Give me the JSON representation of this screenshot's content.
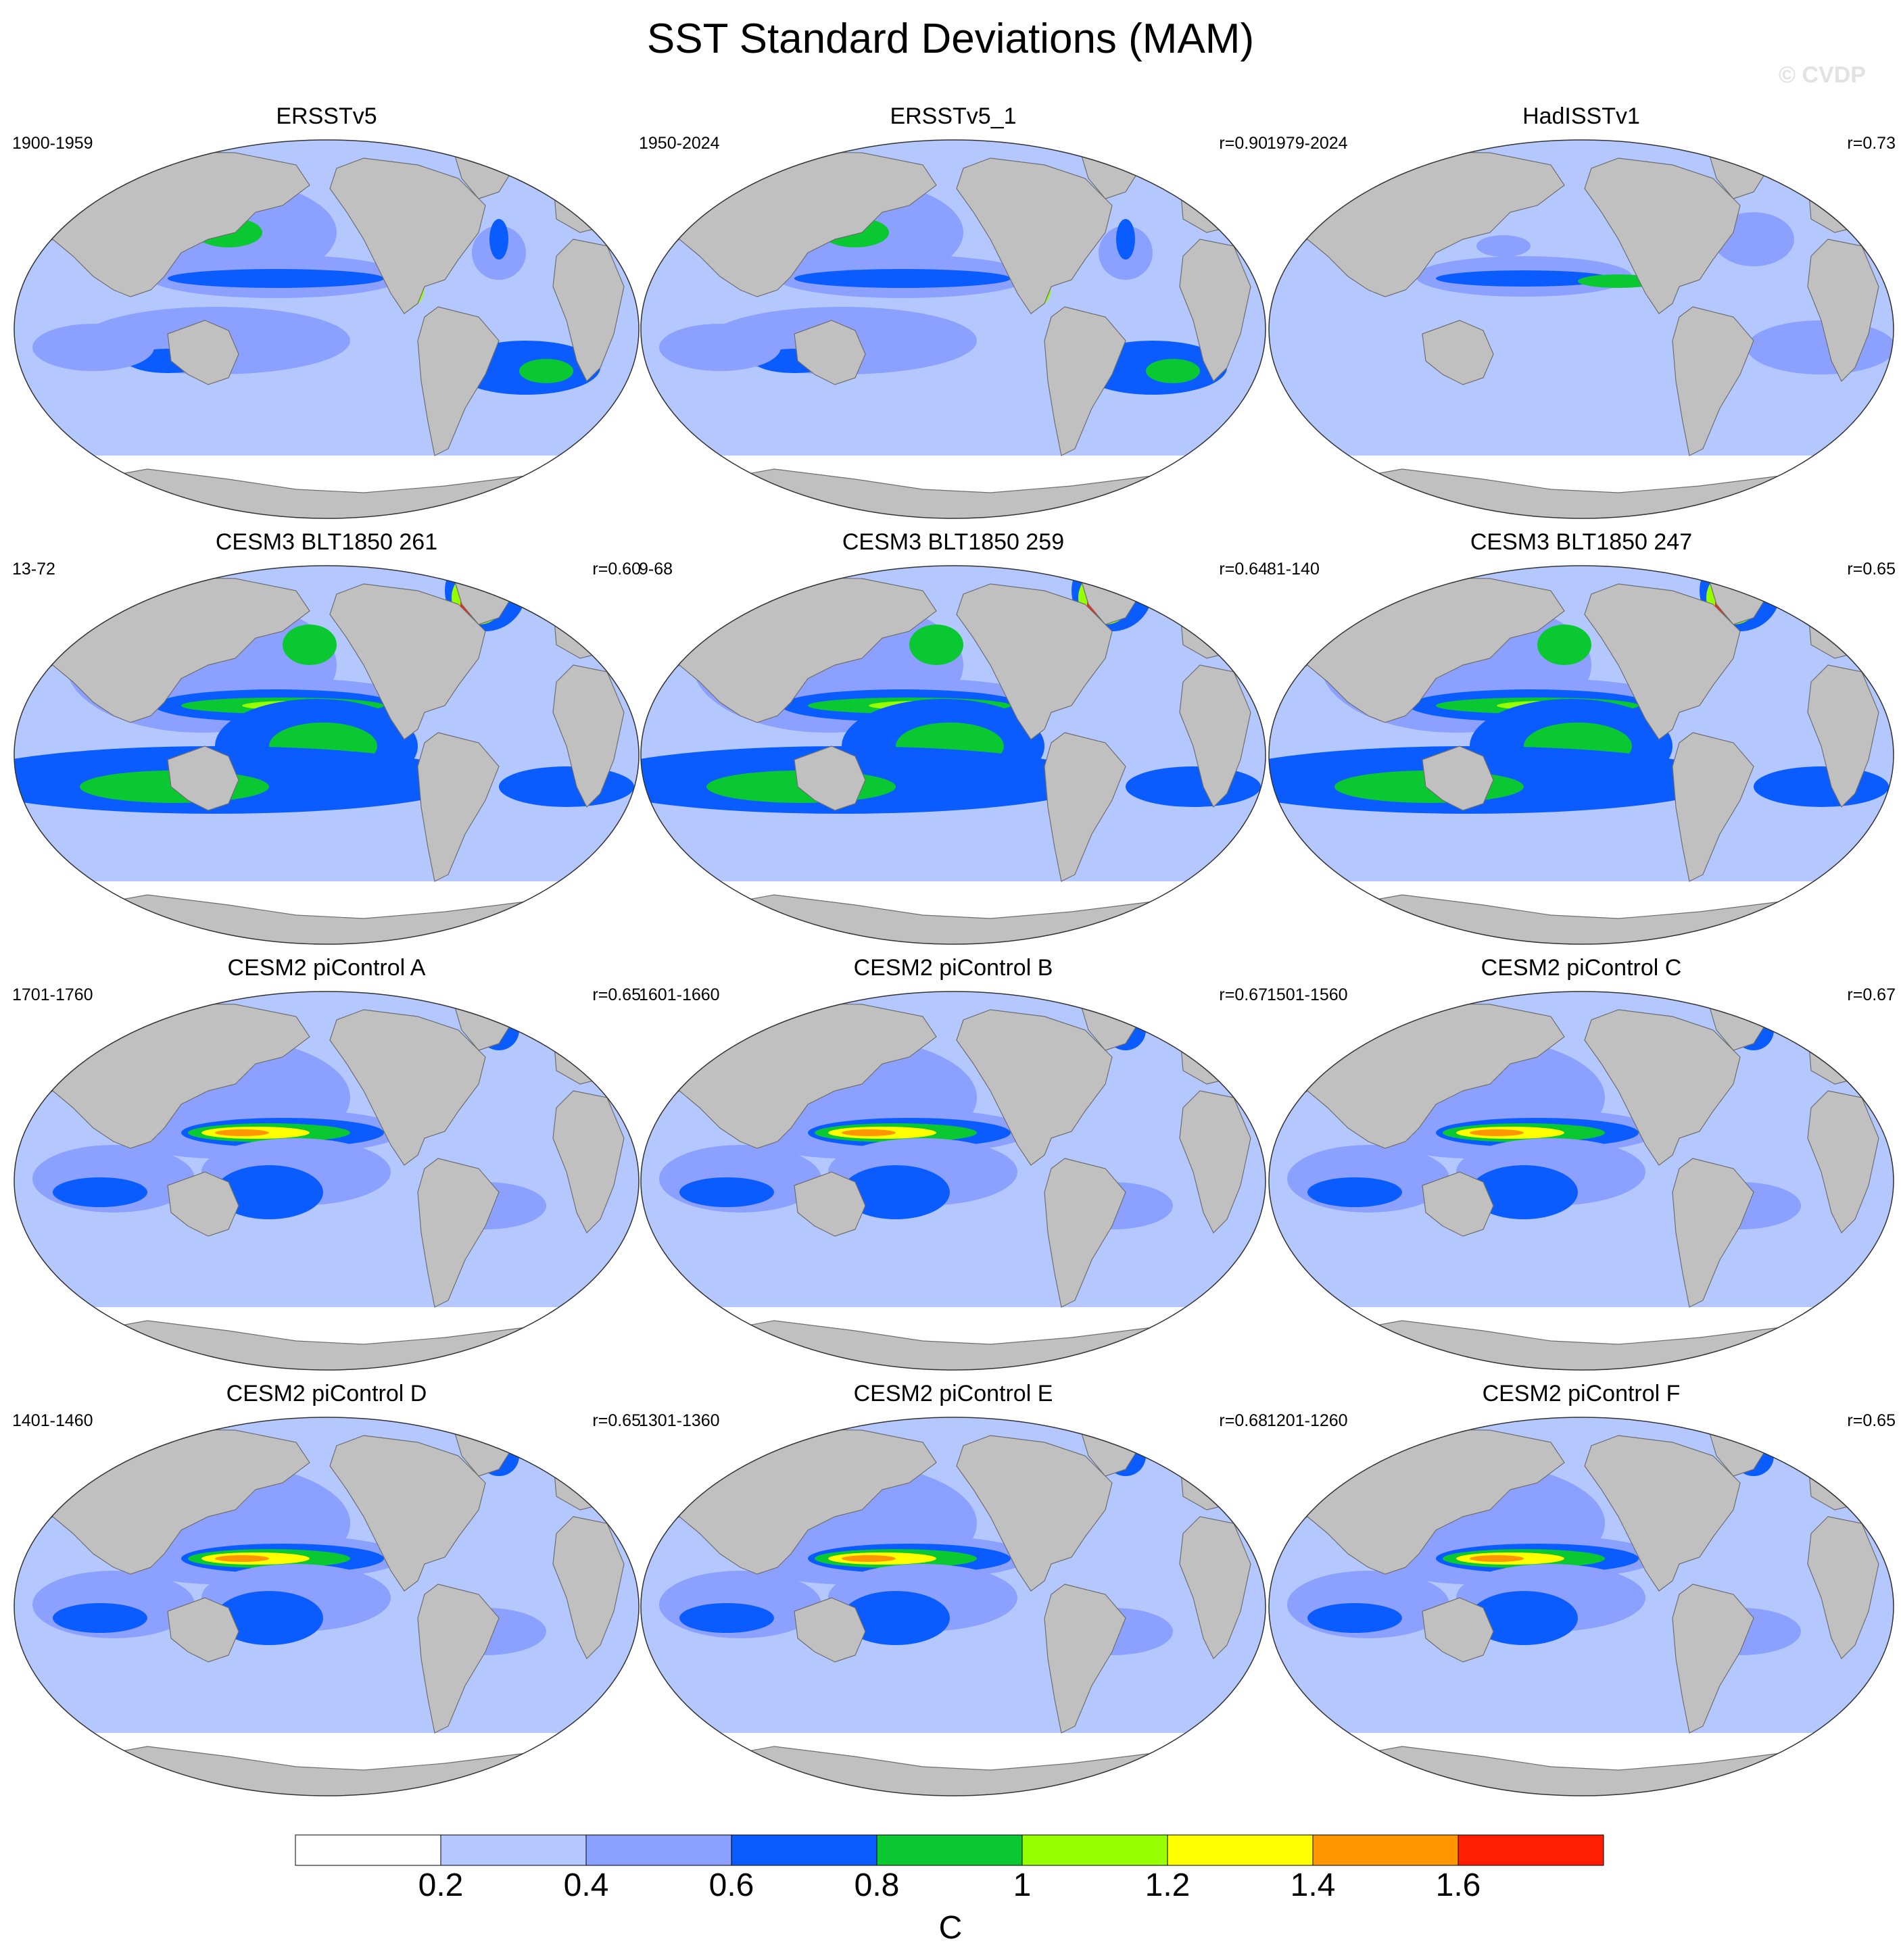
{
  "title": "SST Standard Deviations (MAM)",
  "watermark": "© CVDP",
  "panels": [
    {
      "title": "ERSSTv5",
      "period": "1900-1959",
      "corr": "",
      "variant": 1
    },
    {
      "title": "ERSSTv5_1",
      "period": "1950-2024",
      "corr": "r=0.90",
      "variant": 1
    },
    {
      "title": "HadISSTv1",
      "period": "1979-2024",
      "corr": "r=0.73",
      "variant": 0
    },
    {
      "title": "CESM3 BLT1850 261",
      "period": "13-72",
      "corr": "r=0.60",
      "variant": 3
    },
    {
      "title": "CESM3 BLT1850 259",
      "period": "9-68",
      "corr": "r=0.64",
      "variant": 3
    },
    {
      "title": "CESM3 BLT1850 247",
      "period": "81-140",
      "corr": "r=0.65",
      "variant": 3
    },
    {
      "title": "CESM2 piControl A",
      "period": "1701-1760",
      "corr": "r=0.65",
      "variant": 2
    },
    {
      "title": "CESM2 piControl B",
      "period": "1601-1660",
      "corr": "r=0.67",
      "variant": 2
    },
    {
      "title": "CESM2 piControl C",
      "period": "1501-1560",
      "corr": "r=0.67",
      "variant": 2
    },
    {
      "title": "CESM2 piControl D",
      "period": "1401-1460",
      "corr": "r=0.65",
      "variant": 2
    },
    {
      "title": "CESM2 piControl E",
      "period": "1301-1360",
      "corr": "r=0.68",
      "variant": 2
    },
    {
      "title": "CESM2 piControl F",
      "period": "1201-1260",
      "corr": "r=0.65",
      "variant": 2
    }
  ],
  "colorbar": {
    "unit": "C",
    "ticks": [
      "0.2",
      "0.4",
      "0.6",
      "0.8",
      "1",
      "1.2",
      "1.4",
      "1.6"
    ],
    "colors": [
      "#ffffff",
      "#b4c8ff",
      "#8ca0ff",
      "#0a5cff",
      "#0ac832",
      "#96ff00",
      "#ffff00",
      "#ff9600",
      "#ff1e00"
    ]
  },
  "map_colors": {
    "land": "#c0c0c0",
    "coast": "#6e6e6e",
    "ocean_base": "#b4c8ff"
  }
}
